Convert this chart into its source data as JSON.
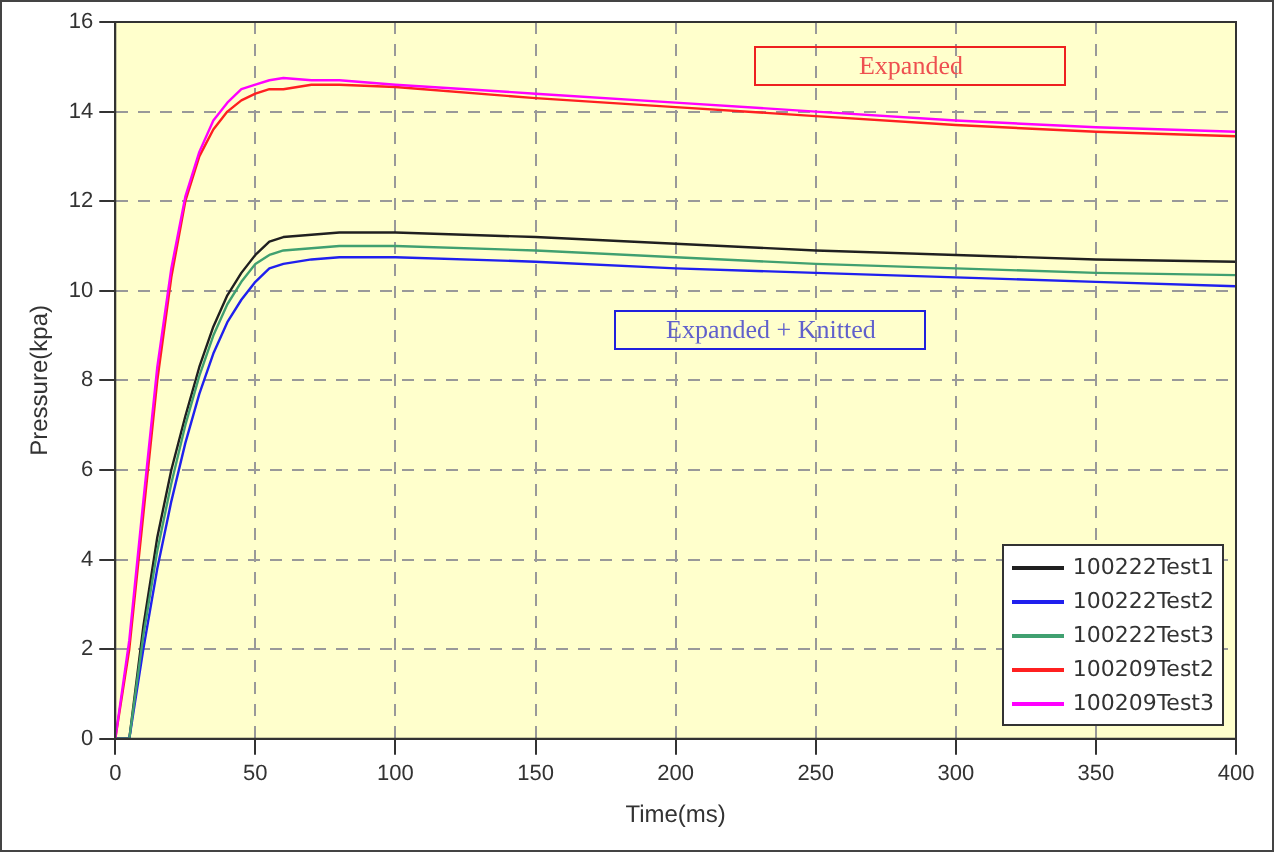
{
  "chart_data": {
    "type": "line",
    "xlabel": "Time(ms)",
    "ylabel": "Pressure(kpa)",
    "x": [
      0,
      5,
      10,
      15,
      20,
      25,
      30,
      35,
      40,
      45,
      50,
      55,
      60,
      70,
      80,
      100,
      150,
      200,
      250,
      300,
      350,
      400
    ],
    "series": [
      {
        "name": "100222Test1",
        "color": "#202020",
        "values": [
          0,
          0,
          2.5,
          4.5,
          6,
          7.2,
          8.3,
          9.2,
          9.9,
          10.4,
          10.8,
          11.1,
          11.2,
          11.25,
          11.3,
          11.3,
          11.2,
          11.05,
          10.9,
          10.8,
          10.7,
          10.65
        ]
      },
      {
        "name": "100222Test2",
        "color": "#2020ee",
        "values": [
          0,
          0,
          2,
          3.8,
          5.3,
          6.6,
          7.7,
          8.6,
          9.3,
          9.8,
          10.2,
          10.5,
          10.6,
          10.7,
          10.75,
          10.75,
          10.65,
          10.5,
          10.4,
          10.3,
          10.2,
          10.1
        ]
      },
      {
        "name": "100222Test3",
        "color": "#40a070",
        "values": [
          0,
          0,
          2.3,
          4.2,
          5.7,
          7,
          8.1,
          9,
          9.7,
          10.2,
          10.6,
          10.8,
          10.9,
          10.95,
          11,
          11,
          10.9,
          10.75,
          10.6,
          10.5,
          10.4,
          10.35
        ]
      },
      {
        "name": "100209Test2",
        "color": "#ff2020",
        "values": [
          0,
          2,
          5,
          8,
          10.3,
          12,
          13,
          13.6,
          14,
          14.25,
          14.4,
          14.5,
          14.5,
          14.6,
          14.6,
          14.55,
          14.3,
          14.1,
          13.9,
          13.7,
          13.55,
          13.45
        ]
      },
      {
        "name": "100209Test3",
        "color": "#ff00ff",
        "values": [
          0,
          2.2,
          5.3,
          8.3,
          10.5,
          12.1,
          13.1,
          13.8,
          14.2,
          14.5,
          14.6,
          14.7,
          14.75,
          14.7,
          14.7,
          14.6,
          14.4,
          14.2,
          14,
          13.8,
          13.65,
          13.55
        ]
      }
    ],
    "xlim": [
      0,
      400
    ],
    "xticks": [
      0,
      50,
      100,
      150,
      200,
      250,
      300,
      350,
      400
    ],
    "ylim": [
      0,
      16
    ],
    "yticks": [
      0,
      2,
      4,
      6,
      8,
      10,
      12,
      14,
      16
    ],
    "grid": true,
    "legend": "bottom right",
    "marker": "none",
    "line_style": "solid",
    "annotations": [
      "Expanded",
      "Expanded + Knitted"
    ]
  }
}
